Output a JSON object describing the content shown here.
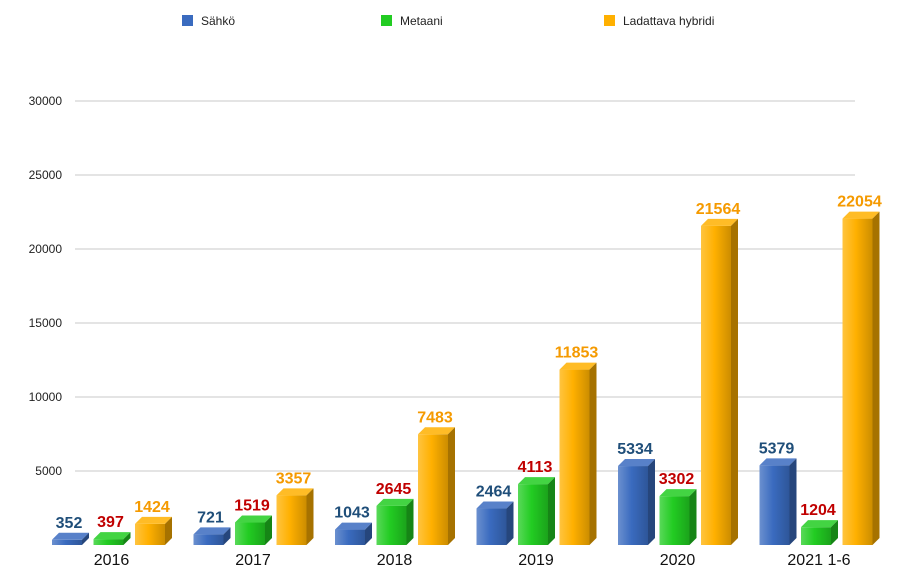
{
  "chart_data": {
    "type": "bar",
    "title": "",
    "xlabel": "",
    "ylabel": "",
    "ylim": [
      0,
      30000
    ],
    "yticks": [
      5000,
      10000,
      15000,
      20000,
      25000,
      30000
    ],
    "yticks_text": [
      "5000",
      "10000",
      "15000",
      "20000",
      "25000",
      "30000"
    ],
    "grid": true,
    "legend_position": "top",
    "categories": [
      "2016",
      "2017",
      "2018",
      "2019",
      "2020",
      "2021 1-6"
    ],
    "series": [
      {
        "name": "Sähkö",
        "color": "#3a6bbf",
        "label_color": "#1f4e79",
        "values": [
          352,
          721,
          1043,
          2464,
          5334,
          5379
        ],
        "labels": [
          "352",
          "721",
          "1043",
          "2464",
          "5334",
          "5379"
        ]
      },
      {
        "name": "Metaani",
        "color": "#22cc22",
        "label_color": "#c00000",
        "values": [
          397,
          1519,
          2645,
          4113,
          3302,
          1204
        ],
        "labels": [
          "397",
          "1519",
          "2645",
          "4113",
          "3302",
          "1204"
        ]
      },
      {
        "name": "Ladattava hybridi",
        "color": "#ffb000",
        "label_color": "#f59a00",
        "values": [
          1424,
          3357,
          7483,
          11853,
          21564,
          22054
        ],
        "labels": [
          "1424",
          "3357",
          "7483",
          "11853",
          "21564",
          "22054"
        ]
      }
    ]
  }
}
